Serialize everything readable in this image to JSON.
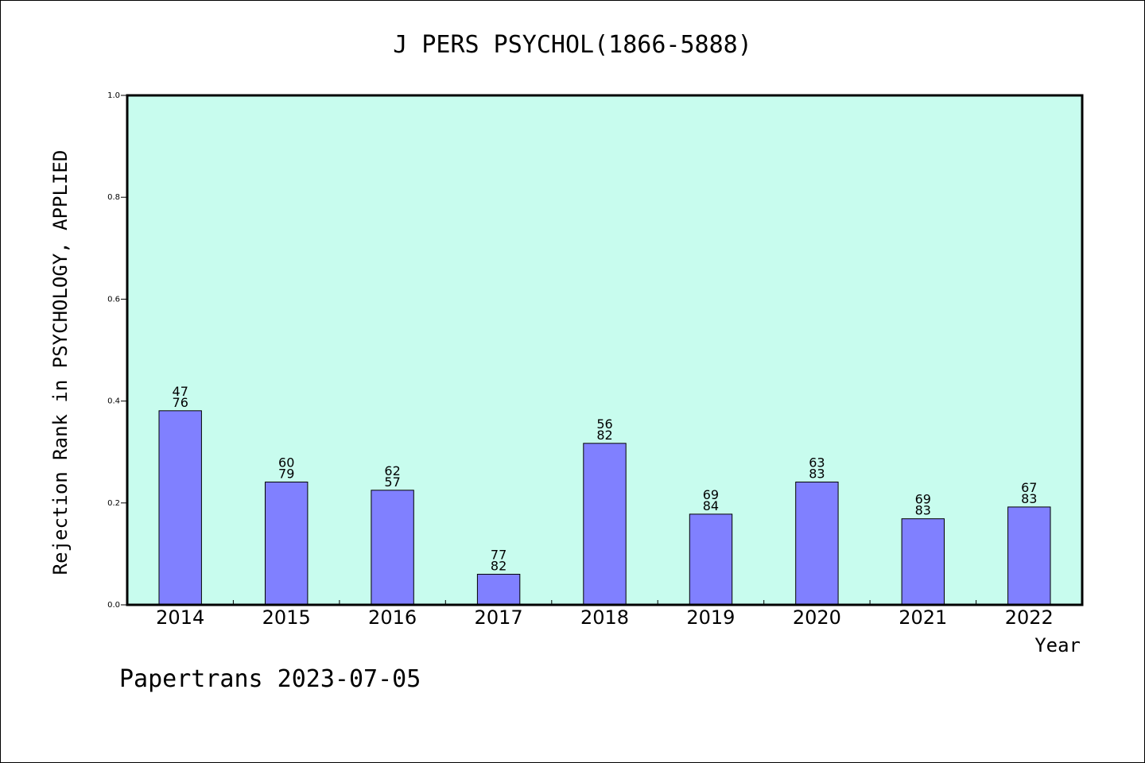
{
  "chart_data": {
    "type": "bar",
    "title": "J PERS PSYCHOL(1866-5888)",
    "xlabel": "Year",
    "ylabel": "Rejection Rank in PSYCHOLOGY, APPLIED",
    "ylim": [
      0,
      1.0
    ],
    "yticks": [
      "0.0",
      "0.2",
      "0.4",
      "0.6",
      "0.8",
      "1.0"
    ],
    "ytick_values": [
      0.0,
      0.2,
      0.4,
      0.6,
      0.8,
      1.0
    ],
    "categories": [
      "2014",
      "2015",
      "2016",
      "2017",
      "2018",
      "2019",
      "2020",
      "2021",
      "2022"
    ],
    "values": [
      0.381,
      0.241,
      0.225,
      0.06,
      0.317,
      0.178,
      0.241,
      0.169,
      0.192
    ],
    "labels_top": [
      "47",
      "60",
      "62",
      "77",
      "56",
      "69",
      "63",
      "69",
      "67"
    ],
    "labels_bottom": [
      "76",
      "79",
      "57",
      "82",
      "82",
      "84",
      "83",
      "83",
      "83"
    ],
    "bar_color": "#8080ff",
    "plot_background": "#c8fcee",
    "grid": false
  },
  "footer": "Papertrans 2023-07-05"
}
